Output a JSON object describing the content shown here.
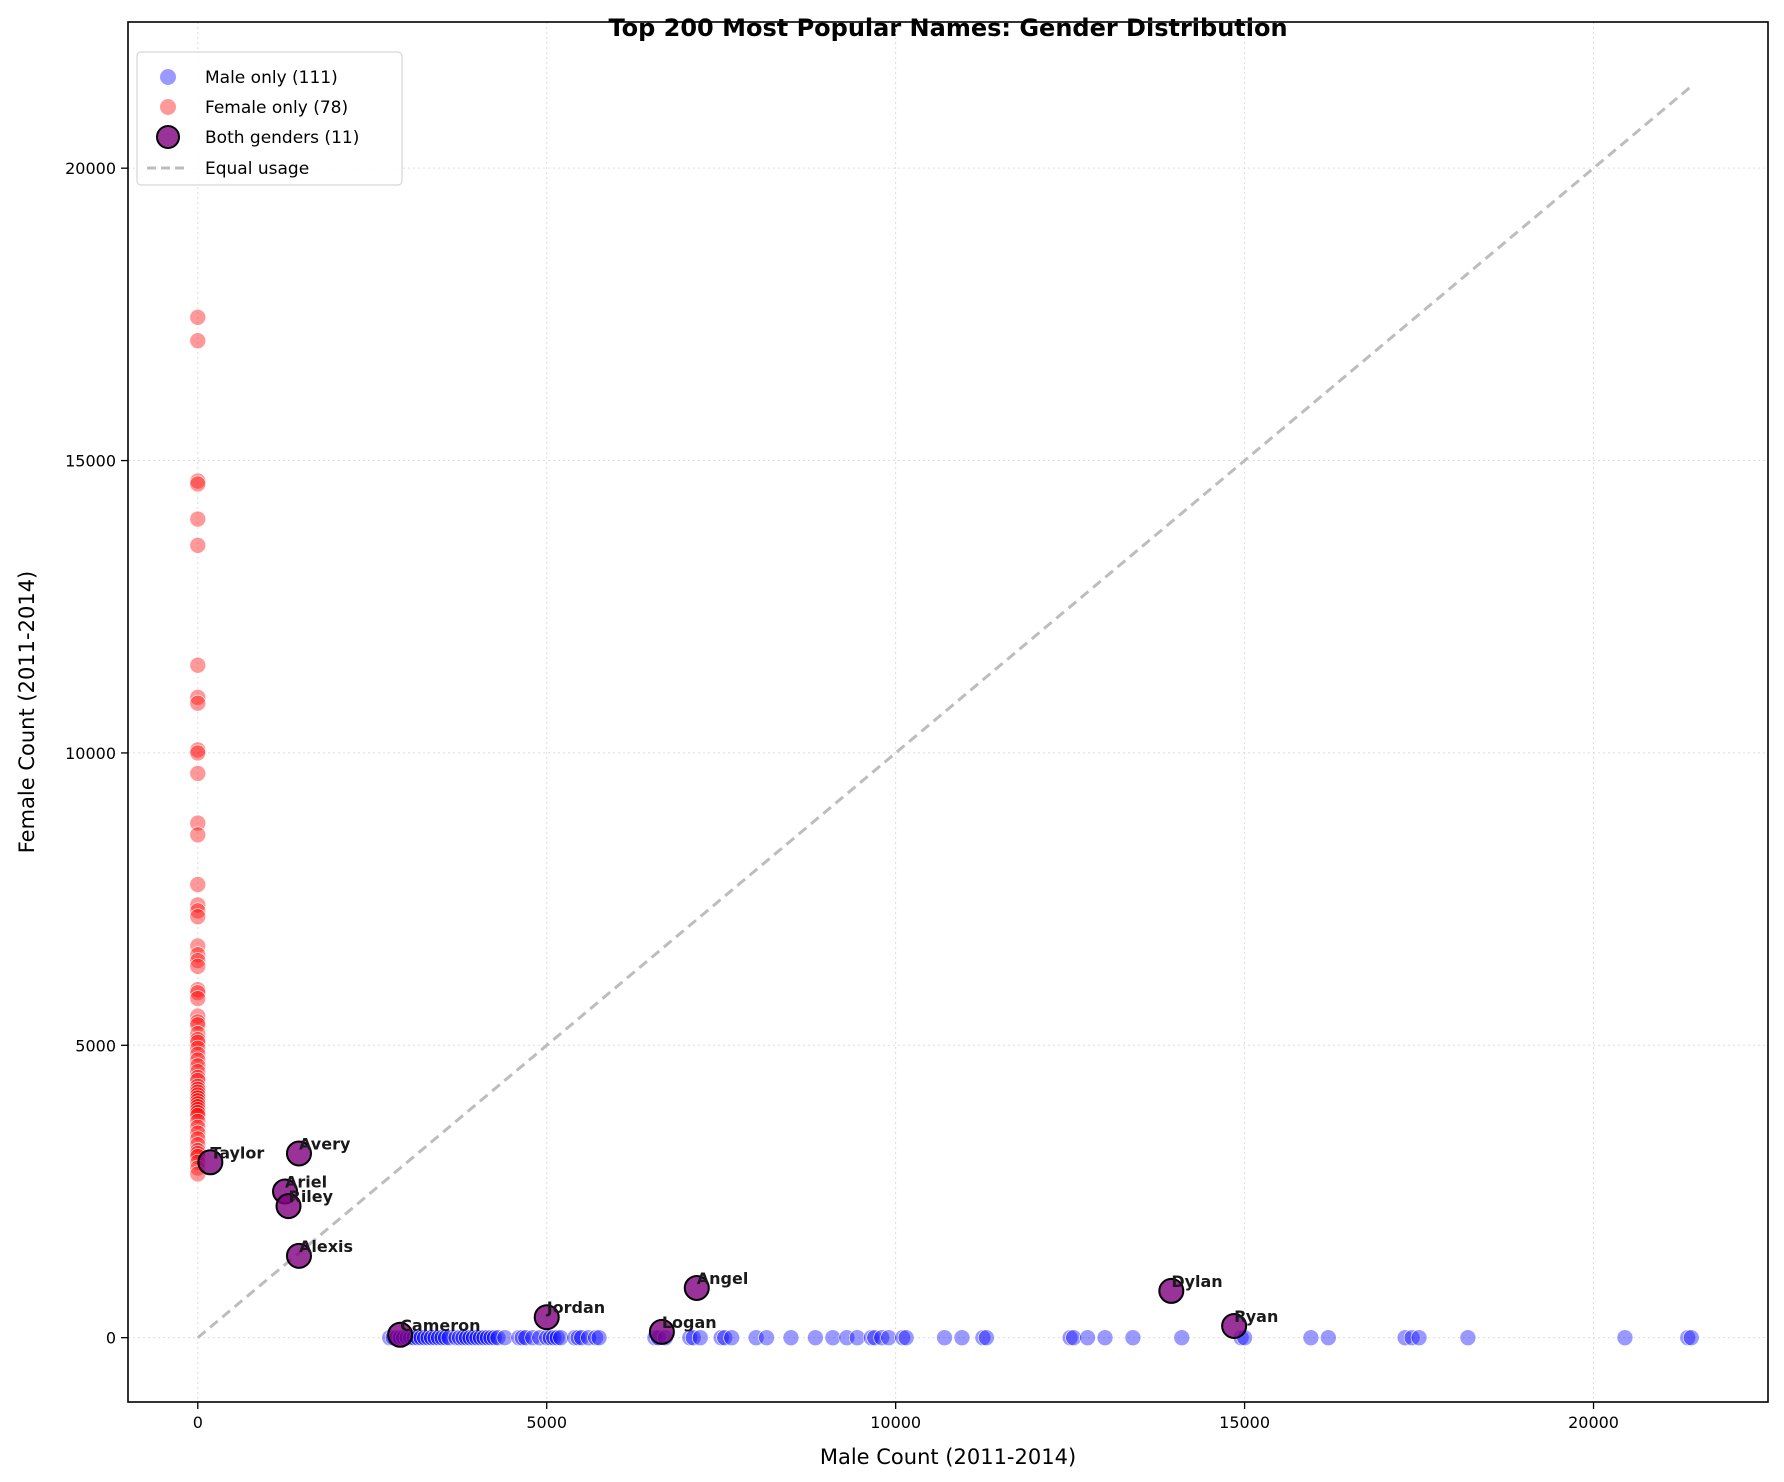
{
  "chart_data": {
    "type": "scatter",
    "title": "Top 200 Most Popular Names: Gender Distribution",
    "xlabel": "Male Count (2011-2014)",
    "ylabel": "Female Count (2011-2014)",
    "xlim": [
      -1000,
      22500
    ],
    "ylim": [
      -1100,
      22500
    ],
    "xticks": [
      0,
      5000,
      10000,
      15000,
      20000
    ],
    "yticks": [
      0,
      5000,
      10000,
      15000,
      20000
    ],
    "xtick_labels": [
      "0",
      "5000",
      "10000",
      "15000",
      "20000"
    ],
    "ytick_labels": [
      "0",
      "5000",
      "10000",
      "15000",
      "20000"
    ],
    "grid": true,
    "legend_position": "top-left",
    "legend": {
      "male": "Male only (111)",
      "female": "Female only (78)",
      "both": "Both genders (11)",
      "equal": "Equal usage"
    },
    "colors": {
      "male": "#0000ff",
      "female": "#ff0000",
      "both": "#800080",
      "equal_line": "#bdbdbd"
    },
    "equal_line": {
      "x": [
        0,
        21400
      ],
      "y": [
        0,
        21400
      ]
    },
    "series": [
      {
        "name": "Male only (111)",
        "x": [
          2750,
          2800,
          2850,
          2900,
          2950,
          3000,
          3050,
          3100,
          3150,
          3200,
          3250,
          3300,
          3350,
          3400,
          3450,
          3500,
          3550,
          3600,
          3700,
          3750,
          3800,
          3850,
          3900,
          3950,
          4000,
          4050,
          4100,
          4150,
          4200,
          4250,
          4300,
          4400,
          4600,
          4650,
          4700,
          4800,
          4900,
          5000,
          5050,
          5100,
          5150,
          5200,
          5400,
          5450,
          5500,
          5600,
          5700,
          5750,
          6550,
          6600,
          6700,
          7050,
          7100,
          7200,
          7500,
          7550,
          7650,
          8000,
          8150,
          8500,
          8850,
          9100,
          9300,
          9450,
          9650,
          9700,
          9800,
          9900,
          10100,
          10150,
          10700,
          10950,
          11250,
          11300,
          12500,
          12550,
          12750,
          13000,
          13400,
          14100,
          14950,
          15000,
          15950,
          16200,
          17300,
          17400,
          17500,
          18200,
          20450,
          21350,
          21400
        ],
        "y": [
          0,
          0,
          0,
          0,
          0,
          0,
          0,
          0,
          0,
          0,
          0,
          0,
          0,
          0,
          0,
          0,
          0,
          0,
          0,
          0,
          0,
          0,
          0,
          0,
          0,
          0,
          0,
          0,
          0,
          0,
          0,
          0,
          0,
          0,
          0,
          0,
          0,
          0,
          0,
          0,
          0,
          0,
          0,
          0,
          0,
          0,
          0,
          0,
          0,
          0,
          0,
          0,
          0,
          0,
          0,
          0,
          0,
          0,
          0,
          0,
          0,
          0,
          0,
          0,
          0,
          0,
          0,
          0,
          0,
          0,
          0,
          0,
          0,
          0,
          0,
          0,
          0,
          0,
          0,
          0,
          0,
          0,
          0,
          0,
          0,
          0,
          0,
          0,
          0,
          0,
          0
        ]
      },
      {
        "name": "Female only (78)",
        "x": [
          0,
          0,
          0,
          0,
          0,
          0,
          0,
          0,
          0,
          0,
          0,
          0,
          0,
          0,
          0,
          0,
          0,
          0,
          0,
          0,
          0,
          0,
          0,
          0,
          0,
          0,
          0,
          0,
          0,
          0,
          0,
          0,
          0,
          0,
          0,
          0,
          0,
          0,
          0,
          0,
          0,
          0,
          0,
          0,
          0,
          0,
          0,
          0,
          0,
          0,
          0,
          0,
          0,
          0,
          0,
          0,
          0,
          0,
          0,
          0
        ],
        "y": [
          17450,
          17050,
          14650,
          14600,
          14000,
          13550,
          11500,
          10950,
          10850,
          10050,
          10000,
          9650,
          8800,
          8600,
          7750,
          7400,
          7300,
          7200,
          6700,
          6550,
          6450,
          6350,
          5950,
          5900,
          5800,
          5500,
          5400,
          5350,
          5200,
          5100,
          5050,
          4950,
          4850,
          4750,
          4650,
          4550,
          4450,
          4400,
          4300,
          4250,
          4200,
          4150,
          4100,
          4050,
          4000,
          3950,
          3900,
          3850,
          3800,
          3700,
          3600,
          3500,
          3400,
          3300,
          3200,
          3150,
          3100,
          3000,
          2900,
          2800
        ]
      },
      {
        "name": "Both genders (11)",
        "points": [
          {
            "label": "Taylor",
            "x": 180,
            "y": 3000
          },
          {
            "label": "Avery",
            "x": 1450,
            "y": 3150
          },
          {
            "label": "Ariel",
            "x": 1250,
            "y": 2500
          },
          {
            "label": "Riley",
            "x": 1300,
            "y": 2250
          },
          {
            "label": "Alexis",
            "x": 1450,
            "y": 1400
          },
          {
            "label": "Angel",
            "x": 7150,
            "y": 850
          },
          {
            "label": "Jordan",
            "x": 5000,
            "y": 350
          },
          {
            "label": "Cameron",
            "x": 2900,
            "y": 50
          },
          {
            "label": "Logan",
            "x": 6650,
            "y": 100
          },
          {
            "label": "Dylan",
            "x": 13950,
            "y": 800
          },
          {
            "label": "Ryan",
            "x": 14850,
            "y": 200
          }
        ]
      }
    ]
  }
}
